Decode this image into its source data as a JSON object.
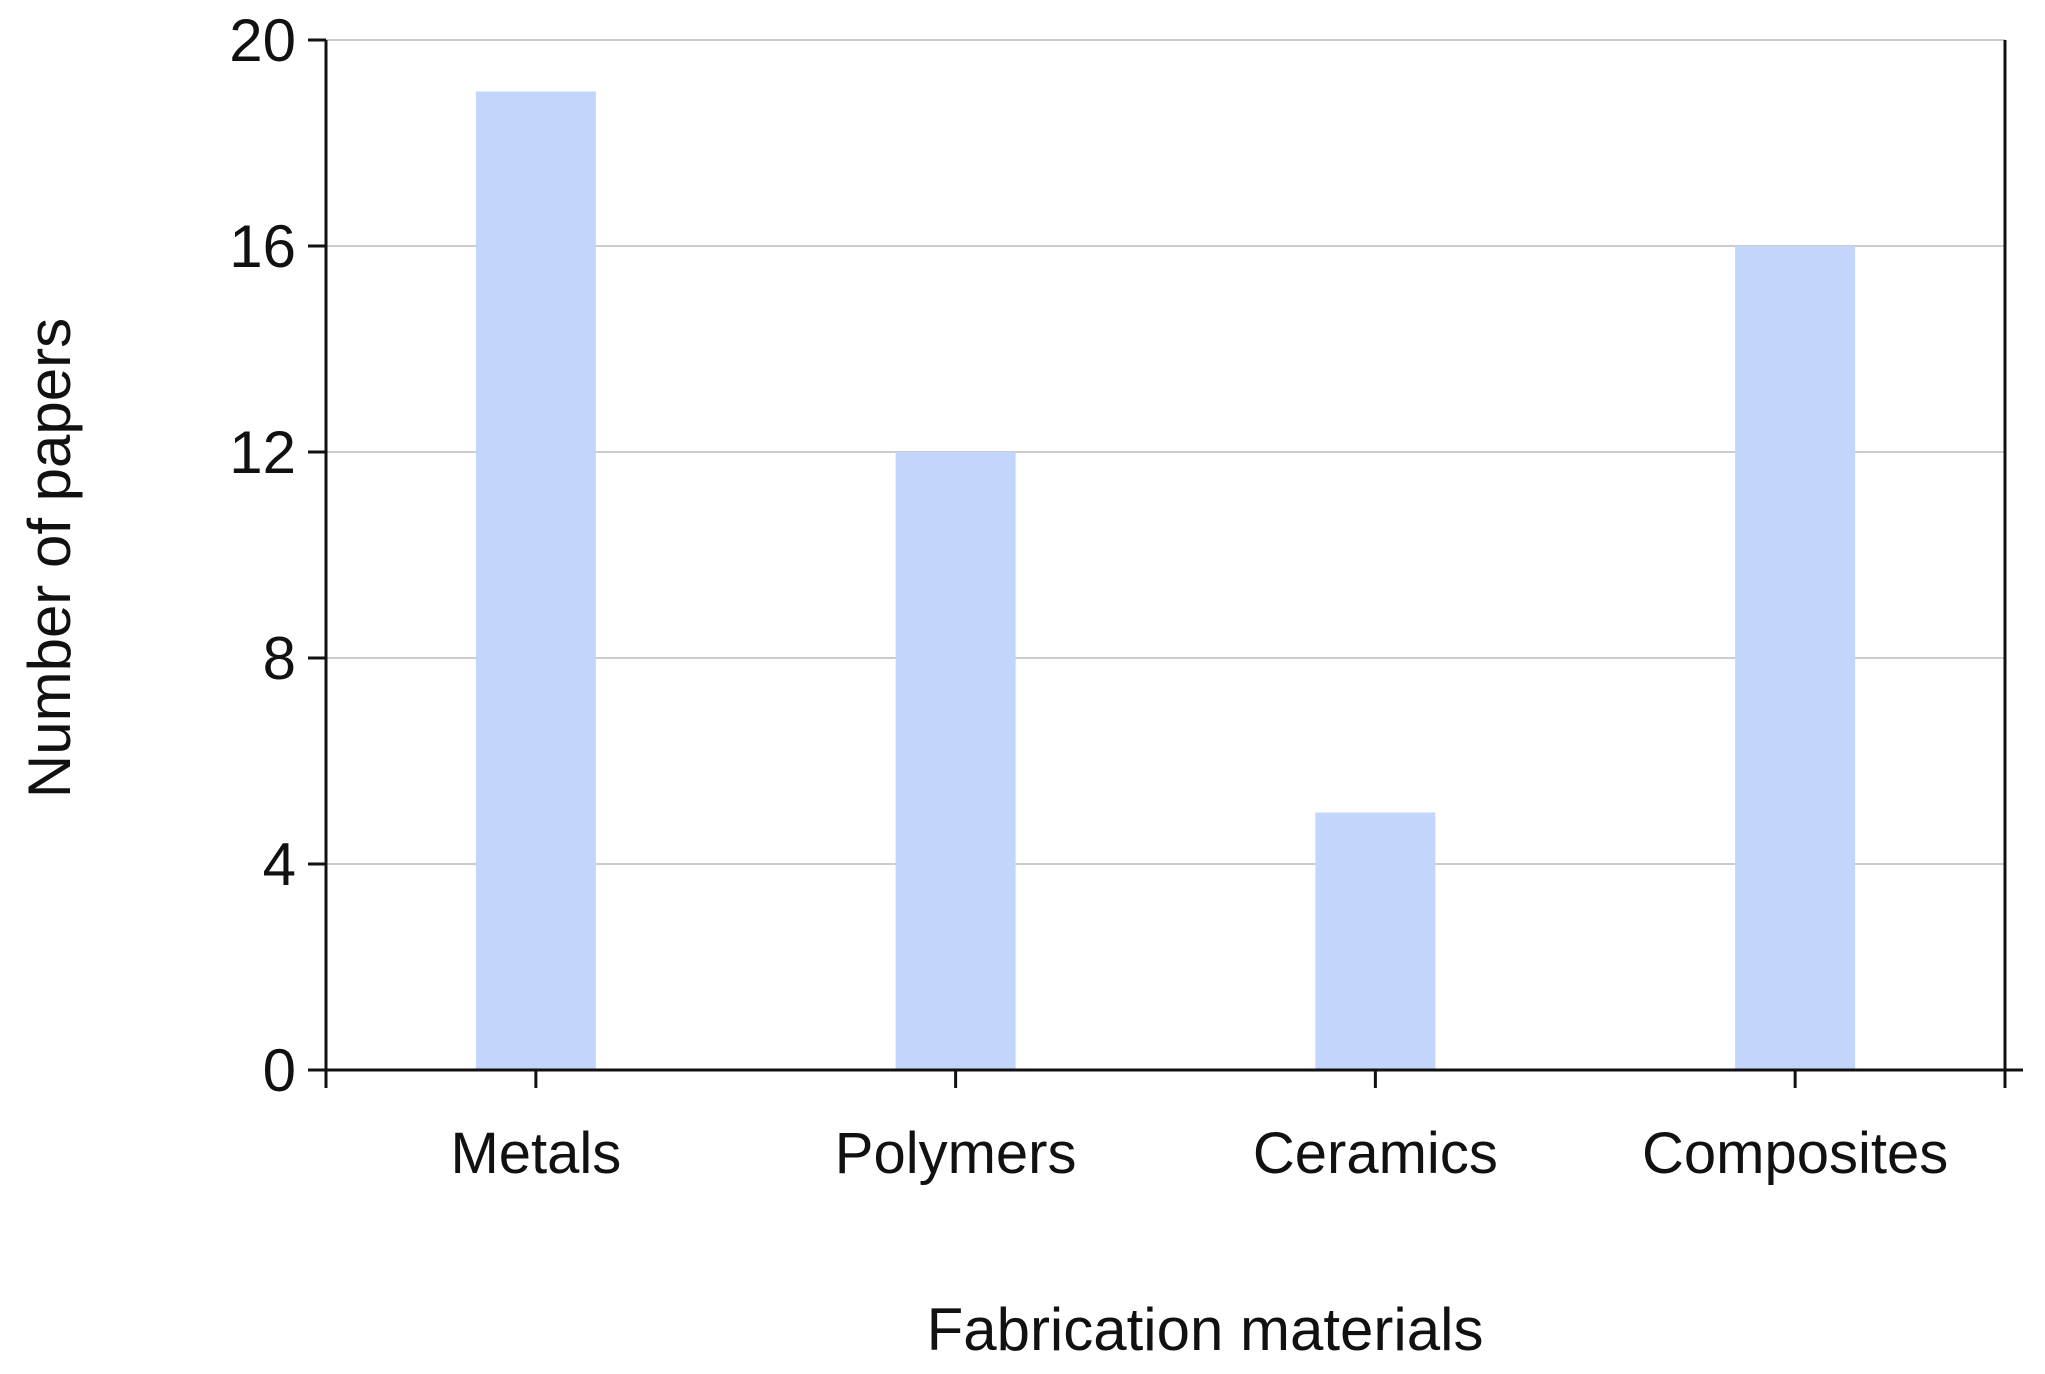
{
  "chart_data": {
    "type": "bar",
    "categories": [
      "Metals",
      "Polymers",
      "Ceramics",
      "Composites"
    ],
    "values": [
      19,
      12,
      5,
      16
    ],
    "xlabel": "Fabrication materials",
    "ylabel": "Number of papers",
    "ylim": [
      0,
      20
    ],
    "yticks": [
      "0",
      "4",
      "8",
      "12",
      "16",
      "20"
    ],
    "grid": true,
    "bar_color": "#c2d5fb",
    "grid_color": "#cccccc",
    "axis_color": "#111111"
  }
}
